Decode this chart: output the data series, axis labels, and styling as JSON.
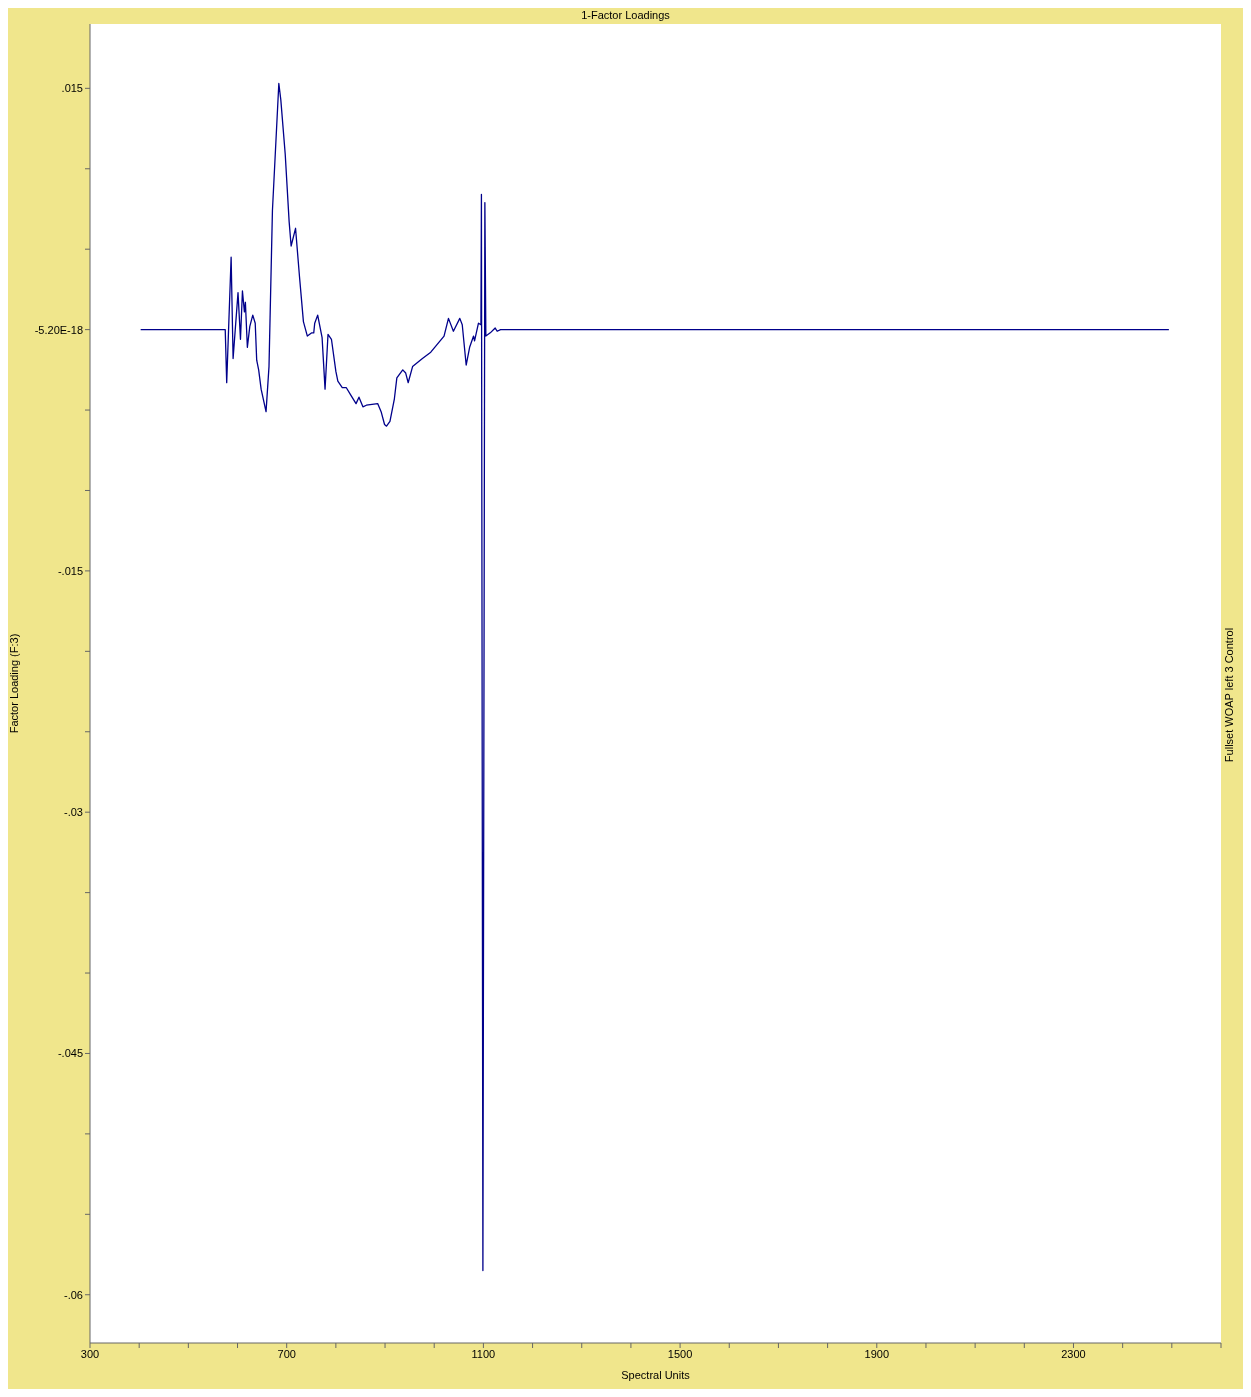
{
  "chart_data": {
    "type": "line",
    "title": "1-Factor Loadings",
    "xlabel": "Spectral Units",
    "ylabel": "Factor Loading (F:3)",
    "annotations": [
      "Fullset WOAP left 3 Control"
    ],
    "xlim": [
      300,
      2600
    ],
    "xticks": [
      300,
      {
        "value": 400,
        "label": null
      },
      {
        "value": 500,
        "label": null
      },
      {
        "value": 600,
        "label": null
      },
      700,
      {
        "value": 800,
        "label": null
      },
      {
        "value": 900,
        "label": null
      },
      {
        "value": 1000,
        "label": null
      },
      1100,
      {
        "value": 1200,
        "label": null
      },
      {
        "value": 1300,
        "label": null
      },
      {
        "value": 1400,
        "label": null
      },
      1500,
      {
        "value": 1600,
        "label": null
      },
      {
        "value": 1700,
        "label": null
      },
      {
        "value": 1800,
        "label": null
      },
      1900,
      {
        "value": 2000,
        "label": null
      },
      {
        "value": 2100,
        "label": null
      },
      {
        "value": 2200,
        "label": null
      },
      2300,
      {
        "value": 2400,
        "label": null
      },
      {
        "value": 2500,
        "label": null
      },
      {
        "value": 2600,
        "label": null
      }
    ],
    "ylim": [
      -0.063,
      0.019
    ],
    "yticks": [
      {
        "value": 0.015,
        "label": ".015"
      },
      {
        "value": 0.01,
        "label": null
      },
      {
        "value": 0.005,
        "label": null
      },
      {
        "value": 0,
        "label": "-5.20E-18"
      },
      {
        "value": -0.005,
        "label": null
      },
      {
        "value": -0.01,
        "label": null
      },
      {
        "value": -0.015,
        "label": "-.015"
      },
      {
        "value": -0.02,
        "label": null
      },
      {
        "value": -0.025,
        "label": null
      },
      {
        "value": -0.03,
        "label": "-.03"
      },
      {
        "value": -0.035,
        "label": null
      },
      {
        "value": -0.04,
        "label": null
      },
      {
        "value": -0.045,
        "label": "-.045"
      },
      {
        "value": -0.05,
        "label": null
      },
      {
        "value": -0.055,
        "label": null
      },
      {
        "value": -0.06,
        "label": "-.06"
      }
    ],
    "grid": false,
    "legend": false,
    "marker": "none",
    "line_style": "solid",
    "series": [
      {
        "color": "#00008b",
        "x": [
          403,
          575,
          578,
          587,
          591,
          601,
          606,
          610,
          614,
          616,
          620,
          625,
          631,
          636,
          639,
          643,
          648,
          658,
          664,
          671,
          684,
          688,
          697,
          705,
          709,
          718,
          726,
          734,
          742,
          751,
          755,
          757,
          763,
          772,
          778,
          784,
          791,
          800,
          804,
          813,
          821,
          831,
          841,
          847,
          855,
          862,
          885,
          892,
          899,
          903,
          910,
          919,
          924,
          936,
          942,
          947,
          956,
          976,
          993,
          1020,
          1029,
          1039,
          1052,
          1057,
          1065,
          1072,
          1080,
          1082,
          1090,
          1095,
          1096,
          1099,
          1103,
          1105,
          1114,
          1124,
          1128,
          1135,
          2494
        ],
        "values": [
          0,
          0,
          -0.0033,
          0.0045,
          -0.0018,
          0.0023,
          -0.0006,
          0.0024,
          0.0011,
          0.0017,
          -0.0011,
          0.0002,
          0.0009,
          0.0004,
          -0.0019,
          -0.0025,
          -0.0037,
          -0.0051,
          -0.0023,
          0.0074,
          0.0153,
          0.0143,
          0.0109,
          0.0067,
          0.0052,
          0.0063,
          0.0033,
          0.0005,
          -0.0004,
          -0.0002,
          -0.0002,
          0.0004,
          0.0009,
          -0.0005,
          -0.0037,
          -0.0003,
          -0.0006,
          -0.0026,
          -0.0032,
          -0.0036,
          -0.0036,
          -0.0041,
          -0.0046,
          -0.0042,
          -0.0048,
          -0.0047,
          -0.0046,
          -0.0051,
          -0.0059,
          -0.006,
          -0.0057,
          -0.0043,
          -0.003,
          -0.0025,
          -0.0027,
          -0.0033,
          -0.0023,
          -0.0018,
          -0.0014,
          -0.0004,
          0.0007,
          -0.0001,
          0.0007,
          0.0003,
          -0.0022,
          -0.0011,
          -0.0004,
          -0.0007,
          0.0004,
          0.0003,
          0.0084,
          -0.0585,
          0.0079,
          -0.0004,
          -0.0002,
          0.0001,
          -0.0001,
          0,
          0
        ]
      }
    ]
  }
}
